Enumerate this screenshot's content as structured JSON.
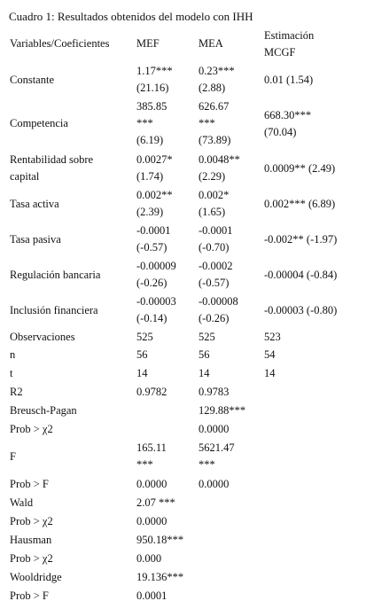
{
  "title": "Cuadro 1: Resultados obtenidos del modelo con IHH",
  "header": {
    "variable": "Variables/Coeficientes",
    "mef": "MEF",
    "mea": "MEA",
    "mcgf": [
      "Estimación",
      "MCGF"
    ]
  },
  "rows": [
    {
      "label": [
        "Constante"
      ],
      "mef": [
        "1.17***",
        "(21.16)"
      ],
      "mea": [
        "0.23***",
        "(2.88)"
      ],
      "mcgf": [
        "0.01 (1.54)"
      ]
    },
    {
      "label": [
        "Competencia"
      ],
      "mef": [
        "385.85",
        "***",
        "(6.19)"
      ],
      "mea": [
        "626.67",
        "***",
        "(73.89)"
      ],
      "mcgf": [
        "668.30***",
        "(70.04)"
      ]
    },
    {
      "label": [
        "Rentabilidad sobre",
        "capital"
      ],
      "mef": [
        "0.0027*",
        "(1.74)"
      ],
      "mea": [
        "0.0048**",
        "(2.29)"
      ],
      "mcgf": [
        "0.0009** (2.49)"
      ]
    },
    {
      "label": [
        "Tasa activa"
      ],
      "mef": [
        "0.002**",
        "(2.39)"
      ],
      "mea": [
        "0.002*",
        "(1.65)"
      ],
      "mcgf": [
        "0.002*** (6.89)"
      ]
    },
    {
      "label": [
        "Tasa pasiva"
      ],
      "mef": [
        "-0.0001",
        "(-0.57)"
      ],
      "mea": [
        "-0.0001",
        "(-0.70)"
      ],
      "mcgf": [
        "-0.002** (-1.97)"
      ]
    },
    {
      "label": [
        "Regulación bancaria"
      ],
      "mef": [
        "-0.00009",
        "(-0.26)"
      ],
      "mea": [
        "-0.0002",
        "(-0.57)"
      ],
      "mcgf": [
        "-0.00004 (-0.84)"
      ]
    },
    {
      "label": [
        "Inclusión financiera"
      ],
      "mef": [
        "-0.00003",
        "(-0.14)"
      ],
      "mea": [
        "-0.00008",
        "(-0.26)"
      ],
      "mcgf": [
        "-0.00003 (-0.80)"
      ]
    },
    {
      "label": [
        "Observaciones"
      ],
      "mef": [
        "525"
      ],
      "mea": [
        "525"
      ],
      "mcgf": [
        "523"
      ]
    },
    {
      "label": [
        "n"
      ],
      "mef": [
        "56"
      ],
      "mea": [
        "56"
      ],
      "mcgf": [
        "54"
      ]
    },
    {
      "label": [
        "t"
      ],
      "mef": [
        "14"
      ],
      "mea": [
        "14"
      ],
      "mcgf": [
        "14"
      ]
    },
    {
      "label": [
        "R2"
      ],
      "mef": [
        "0.9782"
      ],
      "mea": [
        "0.9783"
      ],
      "mcgf": []
    },
    {
      "label": [
        "Breusch-Pagan"
      ],
      "mef": [],
      "mea": [
        "129.88***"
      ],
      "mcgf": []
    },
    {
      "label": [
        "Prob > χ2"
      ],
      "mef": [],
      "mea": [
        "0.0000"
      ],
      "mcgf": []
    },
    {
      "label": [
        "F"
      ],
      "mef": [
        "165.11",
        "***"
      ],
      "mea": [
        "5621.47",
        "***"
      ],
      "mcgf": []
    },
    {
      "label": [
        "Prob > F"
      ],
      "mef": [
        "0.0000"
      ],
      "mea": [
        "0.0000"
      ],
      "mcgf": []
    },
    {
      "label": [
        "Wald"
      ],
      "mef": [
        "2.07 ***"
      ],
      "mea": [],
      "mcgf": []
    },
    {
      "label": [
        "Prob > χ2"
      ],
      "mef": [
        "0.0000"
      ],
      "mea": [],
      "mcgf": []
    },
    {
      "label": [
        "Hausman"
      ],
      "mef": [
        "950.18***"
      ],
      "mea": [],
      "mcgf": []
    },
    {
      "label": [
        "Prob > χ2"
      ],
      "mef": [
        "0.000"
      ],
      "mea": [],
      "mcgf": []
    },
    {
      "label": [
        "Wooldridge"
      ],
      "mef": [
        "19.136***"
      ],
      "mea": [],
      "mcgf": []
    },
    {
      "label": [
        "Prob > F"
      ],
      "mef": [
        "0.0001"
      ],
      "mea": [],
      "mcgf": []
    }
  ]
}
